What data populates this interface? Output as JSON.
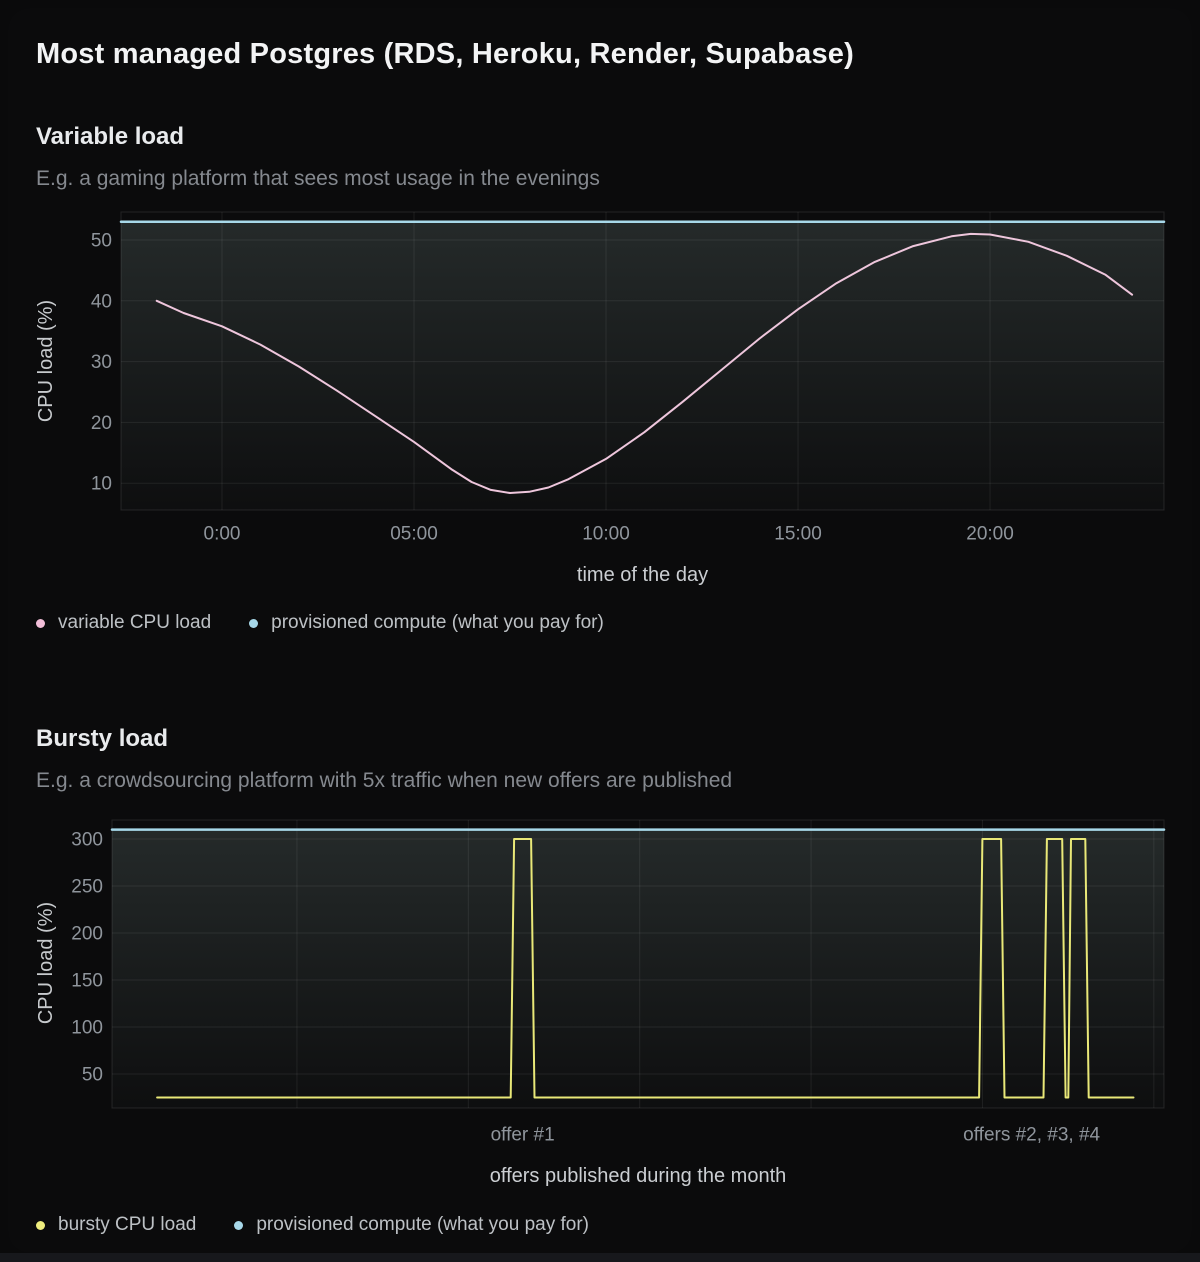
{
  "page": {
    "title": "Most managed Postgres (RDS, Heroku, Render, Supabase)"
  },
  "colors": {
    "pink": "#eec6dc",
    "cyan": "#a7d8e9",
    "yellow": "#e9e878",
    "grid": "rgba(255,255,255,0.075)",
    "plot_border": "rgba(255,255,255,0.10)",
    "tick_text": "#8f959c",
    "fill_top": "rgba(163,194,188,0.17)",
    "fill_bottom": "rgba(163,194,188,0.02)"
  },
  "sections": {
    "variable": {
      "heading": "Variable load",
      "subtitle": "E.g. a gaming platform that sees most usage in the evenings",
      "xlabel": "time of the day",
      "ylabel": "CPU load (%)",
      "legend": [
        {
          "label": "variable CPU load",
          "color": "#f2bed8"
        },
        {
          "label": "provisioned compute (what you pay for)",
          "color": "#a7d8e9"
        }
      ]
    },
    "bursty": {
      "heading": "Bursty load",
      "subtitle": "E.g. a crowdsourcing platform with 5x traffic when new offers are published",
      "xlabel": "offers published during the month",
      "ylabel": "CPU load (%)",
      "legend": [
        {
          "label": "bursty CPU load",
          "color": "#eeec7d"
        },
        {
          "label": "provisioned compute (what you pay for)",
          "color": "#a7d8e9"
        }
      ]
    }
  },
  "chart_data": [
    {
      "type": "line",
      "title": "Variable load",
      "xlabel": "time of the day",
      "ylabel": "CPU load (%)",
      "xlim": [
        -2.63,
        24.53
      ],
      "ylim": [
        5.6,
        54.6
      ],
      "x_ticks": [
        {
          "v": 0,
          "label": "0:00"
        },
        {
          "v": 5,
          "label": "05:00"
        },
        {
          "v": 10,
          "label": "10:00"
        },
        {
          "v": 15,
          "label": "15:00"
        },
        {
          "v": 20,
          "label": "20:00"
        }
      ],
      "y_ticks": [
        10,
        20,
        30,
        40,
        50
      ],
      "legend_position": "bottom-left",
      "grid": true,
      "series": [
        {
          "name": "provisioned compute (what you pay for)",
          "color": "#a7d8e9",
          "width": 2.5,
          "fill_below": true,
          "points": [
            [
              -2.63,
              53
            ],
            [
              24.53,
              53
            ]
          ]
        },
        {
          "name": "variable CPU load",
          "color": "#eec6dc",
          "width": 2,
          "points": [
            [
              -1.7,
              40
            ],
            [
              -1,
              38
            ],
            [
              0,
              35.8
            ],
            [
              1,
              32.8
            ],
            [
              2,
              29.2
            ],
            [
              3,
              25.2
            ],
            [
              4,
              21
            ],
            [
              5,
              16.8
            ],
            [
              5.5,
              14.5
            ],
            [
              6,
              12.2
            ],
            [
              6.5,
              10.2
            ],
            [
              7,
              8.9
            ],
            [
              7.5,
              8.4
            ],
            [
              8,
              8.6
            ],
            [
              8.5,
              9.3
            ],
            [
              9,
              10.6
            ],
            [
              10,
              14
            ],
            [
              11,
              18.4
            ],
            [
              12,
              23.4
            ],
            [
              13,
              28.6
            ],
            [
              14,
              33.8
            ],
            [
              15,
              38.6
            ],
            [
              16,
              42.9
            ],
            [
              17,
              46.4
            ],
            [
              18,
              49
            ],
            [
              19,
              50.6
            ],
            [
              19.5,
              51
            ],
            [
              20,
              50.9
            ],
            [
              21,
              49.7
            ],
            [
              22,
              47.4
            ],
            [
              23,
              44.3
            ],
            [
              23.7,
              41
            ]
          ]
        }
      ]
    },
    {
      "type": "line",
      "title": "Bursty load",
      "xlabel": "offers published during the month",
      "ylabel": "CPU load (%)",
      "xlim": [
        0,
        31
      ],
      "ylim": [
        13.8,
        320.2
      ],
      "x_gridlines": [
        5.45,
        10.5,
        15.55,
        20.6,
        25.65,
        30.7
      ],
      "y_ticks": [
        50,
        100,
        150,
        200,
        250,
        300
      ],
      "annotations": [
        {
          "x": 12.1,
          "label": "offer #1"
        },
        {
          "x": 27.1,
          "label": "offers #2, #3, #4"
        }
      ],
      "legend_position": "bottom-left",
      "grid": true,
      "series": [
        {
          "name": "provisioned compute (what you pay for)",
          "color": "#a7d8e9",
          "width": 2.5,
          "fill_below": true,
          "points": [
            [
              0,
              310
            ],
            [
              31,
              310
            ]
          ]
        },
        {
          "name": "bursty CPU load",
          "color": "#e9e878",
          "width": 2,
          "points": [
            [
              1.33,
              25
            ],
            [
              11.75,
              25
            ],
            [
              11.85,
              300
            ],
            [
              12.35,
              300
            ],
            [
              12.45,
              25
            ],
            [
              25.55,
              25
            ],
            [
              25.65,
              300
            ],
            [
              26.2,
              300
            ],
            [
              26.3,
              25
            ],
            [
              27.45,
              25
            ],
            [
              27.55,
              300
            ],
            [
              28.0,
              300
            ],
            [
              28.1,
              25
            ],
            [
              28.18,
              25
            ],
            [
              28.26,
              300
            ],
            [
              28.68,
              300
            ],
            [
              28.78,
              25
            ],
            [
              30.1,
              25
            ]
          ]
        }
      ]
    }
  ]
}
